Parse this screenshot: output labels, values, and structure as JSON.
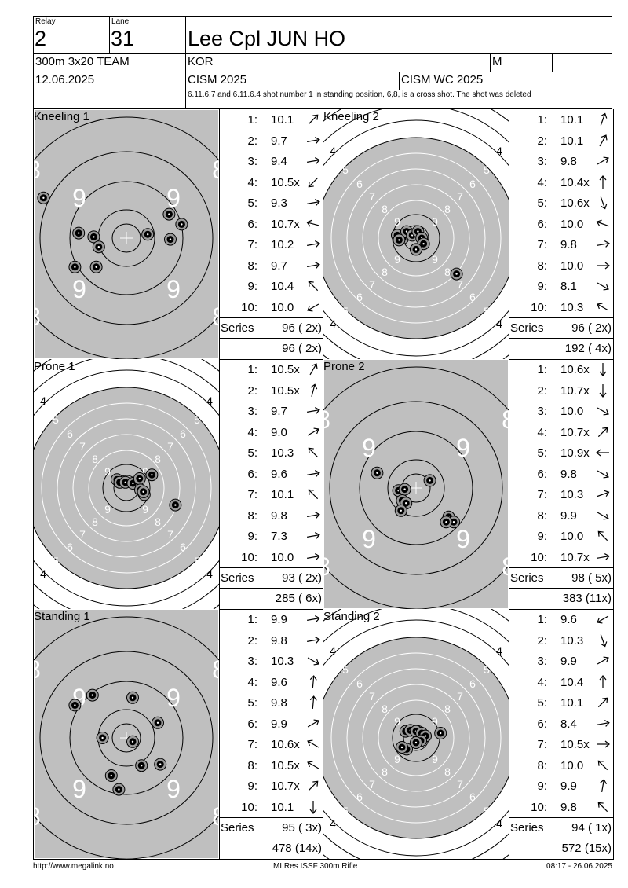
{
  "header": {
    "relay_label": "Relay",
    "relay_value": "2",
    "lane_label": "Lane",
    "lane_value": "31",
    "athlete_name": "Lee Cpl JUN HO",
    "event": "300m 3x20 TEAM",
    "nation": "KOR",
    "gender": "M",
    "date": "12.06.2025",
    "competition": "CISM 2025",
    "championship": "CISM WC 2025",
    "note": "6.11.6.7 and 6.11.6.4 shot number 1 in standing position, 6,8, is a cross shot. The shot was deleted"
  },
  "series_label": "Series",
  "panels": [
    {
      "title": "Kneeling 1",
      "target_type": "inner",
      "shots": [
        {
          "n": "1:",
          "v": "10.1",
          "dir": 45
        },
        {
          "n": "2:",
          "v": "9.7",
          "dir": 80
        },
        {
          "n": "3:",
          "v": "9.4",
          "dir": 80
        },
        {
          "n": "4:",
          "v": "10.5x",
          "dir": 225
        },
        {
          "n": "5:",
          "v": "9.3",
          "dir": 80
        },
        {
          "n": "6:",
          "v": "10.7x",
          "dir": 285
        },
        {
          "n": "7:",
          "v": "10.2",
          "dir": 80
        },
        {
          "n": "8:",
          "v": "9.7",
          "dir": 80
        },
        {
          "n": "9:",
          "v": "10.4",
          "dir": 315
        },
        {
          "n": "10:",
          "v": "10.0",
          "dir": 240
        }
      ],
      "series": "96 ( 2x)",
      "total": "96 ( 2x)",
      "hits": [
        [
          -0.38,
          0.04
        ],
        [
          -0.26,
          0.01
        ],
        [
          -0.22,
          -0.07
        ],
        [
          -0.41,
          -0.23
        ],
        [
          -0.24,
          -0.23
        ],
        [
          0.17,
          0.03
        ],
        [
          0.34,
          0.19
        ],
        [
          0.44,
          0.11
        ],
        [
          0.35,
          -0.01
        ],
        [
          -0.66,
          0.32
        ]
      ]
    },
    {
      "title": "Kneeling 2",
      "target_type": "outer",
      "shots": [
        {
          "n": "1:",
          "v": "10.1",
          "dir": 20
        },
        {
          "n": "2:",
          "v": "10.1",
          "dir": 30
        },
        {
          "n": "3:",
          "v": "9.8",
          "dir": 60
        },
        {
          "n": "4:",
          "v": "10.4x",
          "dir": 0
        },
        {
          "n": "5:",
          "v": "10.6x",
          "dir": 160
        },
        {
          "n": "6:",
          "v": "10.0",
          "dir": 290
        },
        {
          "n": "7:",
          "v": "9.8",
          "dir": 80
        },
        {
          "n": "8:",
          "v": "10.0",
          "dir": 90
        },
        {
          "n": "9:",
          "v": "8.1",
          "dir": 120
        },
        {
          "n": "10:",
          "v": "10.3",
          "dir": 300
        }
      ],
      "series": "96 ( 2x)",
      "total": "192 ( 4x)",
      "hits": [
        [
          -0.2,
          0.03
        ],
        [
          -0.14,
          0.0
        ],
        [
          -0.1,
          0.07
        ],
        [
          -0.04,
          0.03
        ],
        [
          0.02,
          0.07
        ],
        [
          0.06,
          0.0
        ],
        [
          0.08,
          -0.06
        ],
        [
          0.0,
          -0.12
        ],
        [
          -0.18,
          -0.02
        ],
        [
          0.43,
          -0.38
        ]
      ]
    },
    {
      "title": "Prone 1",
      "target_type": "outer",
      "shots": [
        {
          "n": "1:",
          "v": "10.5x",
          "dir": 30
        },
        {
          "n": "2:",
          "v": "10.5x",
          "dir": 15
        },
        {
          "n": "3:",
          "v": "9.7",
          "dir": 80
        },
        {
          "n": "4:",
          "v": "9.0",
          "dir": 60
        },
        {
          "n": "5:",
          "v": "10.3",
          "dir": 315
        },
        {
          "n": "6:",
          "v": "9.6",
          "dir": 80
        },
        {
          "n": "7:",
          "v": "10.1",
          "dir": 315
        },
        {
          "n": "8:",
          "v": "9.8",
          "dir": 80
        },
        {
          "n": "9:",
          "v": "7.3",
          "dir": 80
        },
        {
          "n": "10:",
          "v": "10.0",
          "dir": 80
        }
      ],
      "series": "93 ( 2x)",
      "total": "285 ( 6x)",
      "hits": [
        [
          -0.1,
          0.09
        ],
        [
          -0.07,
          0.06
        ],
        [
          -0.01,
          0.06
        ],
        [
          0.07,
          0.05
        ],
        [
          0.14,
          0.1
        ],
        [
          0.15,
          -0.02
        ],
        [
          0.19,
          -0.07
        ],
        [
          0.18,
          -0.04
        ],
        [
          0.27,
          0.14
        ],
        [
          0.52,
          -0.18
        ]
      ]
    },
    {
      "title": "Prone 2",
      "target_type": "inner",
      "shots": [
        {
          "n": "1:",
          "v": "10.6x",
          "dir": 180
        },
        {
          "n": "2:",
          "v": "10.7x",
          "dir": 180
        },
        {
          "n": "3:",
          "v": "10.0",
          "dir": 120
        },
        {
          "n": "4:",
          "v": "10.7x",
          "dir": 45
        },
        {
          "n": "5:",
          "v": "10.9x",
          "dir": 270
        },
        {
          "n": "6:",
          "v": "9.8",
          "dir": 120
        },
        {
          "n": "7:",
          "v": "10.3",
          "dir": 70
        },
        {
          "n": "8:",
          "v": "9.9",
          "dir": 120
        },
        {
          "n": "9:",
          "v": "10.0",
          "dir": 315
        },
        {
          "n": "10:",
          "v": "10.7x",
          "dir": 80
        }
      ],
      "series": "98 ( 5x)",
      "total": "383 (11x)",
      "hits": [
        [
          -0.14,
          -0.02
        ],
        [
          -0.09,
          -0.01
        ],
        [
          -0.11,
          -0.1
        ],
        [
          -0.08,
          -0.12
        ],
        [
          -0.12,
          -0.18
        ],
        [
          0.11,
          0.06
        ],
        [
          0.26,
          -0.23
        ],
        [
          0.3,
          -0.27
        ],
        [
          0.24,
          -0.27
        ],
        [
          -0.31,
          0.12
        ]
      ]
    },
    {
      "title": "Standing 1",
      "target_type": "inner",
      "shots": [
        {
          "n": "1:",
          "v": "9.9",
          "dir": 80
        },
        {
          "n": "2:",
          "v": "9.8",
          "dir": 80
        },
        {
          "n": "3:",
          "v": "10.3",
          "dir": 120
        },
        {
          "n": "4:",
          "v": "9.6",
          "dir": 5
        },
        {
          "n": "5:",
          "v": "9.8",
          "dir": 5
        },
        {
          "n": "6:",
          "v": "9.9",
          "dir": 60
        },
        {
          "n": "7:",
          "v": "10.6x",
          "dir": 300
        },
        {
          "n": "8:",
          "v": "10.5x",
          "dir": 300
        },
        {
          "n": "9:",
          "v": "10.7x",
          "dir": 45
        },
        {
          "n": "10:",
          "v": "10.1",
          "dir": 180
        }
      ],
      "series": "95 ( 3x)",
      "total": "478 (14x)",
      "hits": [
        [
          -0.19,
          0.0
        ],
        [
          0.05,
          -0.03
        ],
        [
          -0.27,
          0.34
        ],
        [
          -0.41,
          0.26
        ],
        [
          0.05,
          0.32
        ],
        [
          0.25,
          0.12
        ],
        [
          0.27,
          -0.21
        ],
        [
          0.12,
          -0.22
        ],
        [
          -0.06,
          -0.41
        ],
        [
          -0.12,
          -0.3
        ]
      ]
    },
    {
      "title": "Standing 2",
      "target_type": "outer",
      "shots": [
        {
          "n": "1:",
          "v": "9.6",
          "dir": 240
        },
        {
          "n": "2:",
          "v": "10.3",
          "dir": 160
        },
        {
          "n": "3:",
          "v": "9.9",
          "dir": 60
        },
        {
          "n": "4:",
          "v": "10.4",
          "dir": 0
        },
        {
          "n": "5:",
          "v": "10.1",
          "dir": 45
        },
        {
          "n": "6:",
          "v": "8.4",
          "dir": 80
        },
        {
          "n": "7:",
          "v": "10.5x",
          "dir": 90
        },
        {
          "n": "8:",
          "v": "10.0",
          "dir": 315
        },
        {
          "n": "9:",
          "v": "9.9",
          "dir": 10
        },
        {
          "n": "10:",
          "v": "9.8",
          "dir": 315
        }
      ],
      "series": "94 ( 1x)",
      "total": "572 (15x)",
      "hits": [
        [
          -0.11,
          0.07
        ],
        [
          -0.06,
          0.08
        ],
        [
          0.0,
          0.07
        ],
        [
          0.06,
          0.05
        ],
        [
          0.1,
          0.02
        ],
        [
          0.05,
          -0.03
        ],
        [
          0.0,
          -0.05
        ],
        [
          -0.1,
          -0.12
        ],
        [
          -0.15,
          -0.1
        ],
        [
          0.26,
          0.05
        ]
      ]
    }
  ],
  "footer": {
    "url": "http://www.megalink.no",
    "software": "MLRes ISSF 300m Rifle",
    "timestamp": "08:17 - 26.06.2025"
  }
}
